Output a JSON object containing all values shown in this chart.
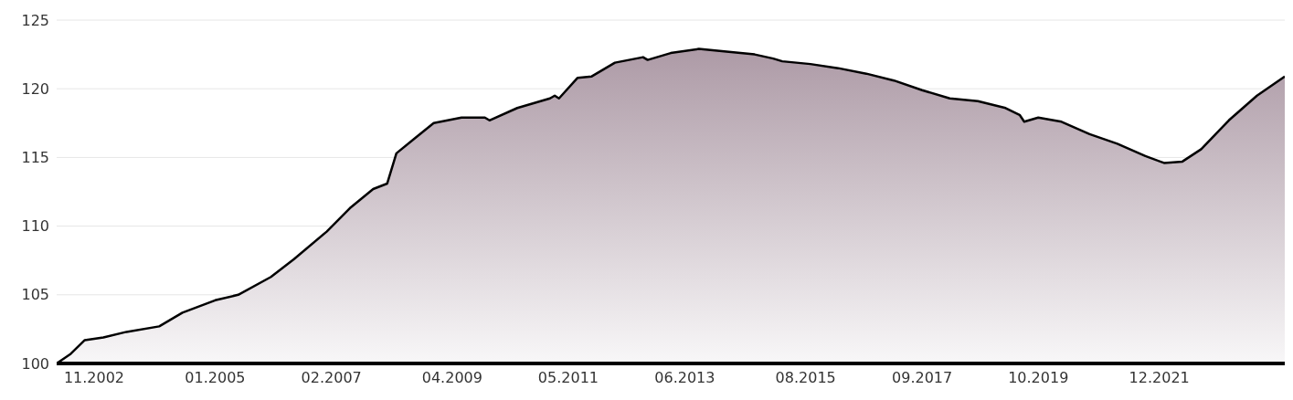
{
  "chart_data": {
    "type": "area",
    "x": [
      "2002-03",
      "2002-06",
      "2002-09",
      "2003-01",
      "2003-06",
      "2004-01",
      "2004-06",
      "2005-01",
      "2005-06",
      "2006-01",
      "2006-06",
      "2007-01",
      "2007-06",
      "2007-11",
      "2008-02",
      "2008-04",
      "2008-08",
      "2008-12",
      "2009-06",
      "2009-11",
      "2009-12",
      "2010-06",
      "2011-01",
      "2011-02",
      "2011-03",
      "2011-07",
      "2011-10",
      "2012-03",
      "2012-09",
      "2012-10",
      "2013-03",
      "2013-09",
      "2014-03",
      "2014-09",
      "2015-01",
      "2015-03",
      "2015-09",
      "2016-03",
      "2016-09",
      "2017-03",
      "2017-09",
      "2018-03",
      "2018-09",
      "2019-03",
      "2019-06",
      "2019-07",
      "2019-10",
      "2020-03",
      "2020-09",
      "2021-03",
      "2021-09",
      "2022-01",
      "2022-05",
      "2022-09",
      "2023-03",
      "2023-09",
      "2024-03"
    ],
    "series": [
      {
        "color": "#000000",
        "values": [
          100.0,
          100.7,
          101.7,
          101.9,
          102.3,
          102.7,
          103.7,
          104.6,
          105.0,
          106.3,
          107.6,
          109.6,
          111.3,
          112.7,
          113.1,
          115.3,
          116.4,
          117.5,
          117.9,
          117.9,
          117.7,
          118.6,
          119.3,
          119.5,
          119.3,
          120.8,
          120.9,
          121.9,
          122.3,
          122.1,
          122.6,
          122.9,
          122.7,
          122.5,
          122.2,
          122.0,
          121.8,
          121.5,
          121.1,
          120.6,
          119.9,
          119.3,
          119.1,
          118.6,
          118.1,
          117.6,
          117.9,
          117.6,
          116.7,
          116.0,
          115.1,
          114.6,
          114.7,
          115.6,
          117.7,
          119.5,
          120.9
        ]
      }
    ],
    "xlim": [
      "2002-03",
      "2024-03"
    ],
    "xticks": [
      {
        "value": "2002-11",
        "label": "11.2002"
      },
      {
        "value": "2005-01",
        "label": "01.2005"
      },
      {
        "value": "2007-02",
        "label": "02.2007"
      },
      {
        "value": "2009-04",
        "label": "04.2009"
      },
      {
        "value": "2011-05",
        "label": "05.2011"
      },
      {
        "value": "2013-06",
        "label": "06.2013"
      },
      {
        "value": "2015-08",
        "label": "08.2015"
      },
      {
        "value": "2017-09",
        "label": "09.2017"
      },
      {
        "value": "2019-10",
        "label": "10.2019"
      },
      {
        "value": "2021-12",
        "label": "12.2021"
      }
    ],
    "ylim": [
      100,
      125
    ],
    "yticks": [
      100,
      105,
      110,
      115,
      120,
      125
    ],
    "grid": "y"
  }
}
